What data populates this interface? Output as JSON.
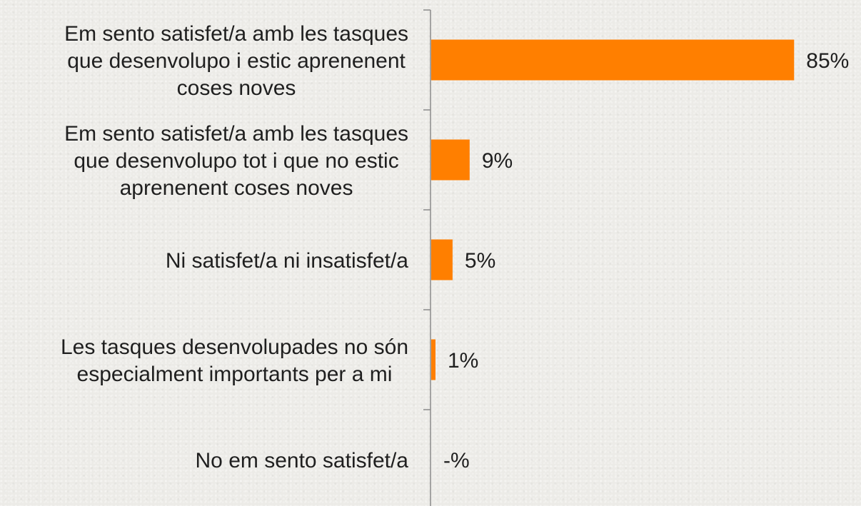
{
  "chart_data": {
    "type": "bar",
    "orientation": "horizontal",
    "categories": [
      [
        "Em sento satisfet/a amb les tasques",
        "que desenvolupo i estic aprenenent",
        "coses noves"
      ],
      [
        "Em sento satisfet/a amb les tasques",
        "que desenvolupo tot i que no estic",
        "aprenenent coses noves"
      ],
      [
        "Ni satisfet/a ni insatisfet/a"
      ],
      [
        "Les tasques desenvolupades no són",
        "especialment importants per a mi"
      ],
      [
        "No em sento satisfet/a"
      ]
    ],
    "values": [
      85,
      9,
      5,
      1,
      0
    ],
    "value_labels": [
      "85%",
      "9%",
      "5%",
      "1%",
      "-%"
    ],
    "xlim": [
      0,
      100
    ],
    "bar_color": "#ff7f00",
    "grid": false,
    "legend": "none"
  }
}
